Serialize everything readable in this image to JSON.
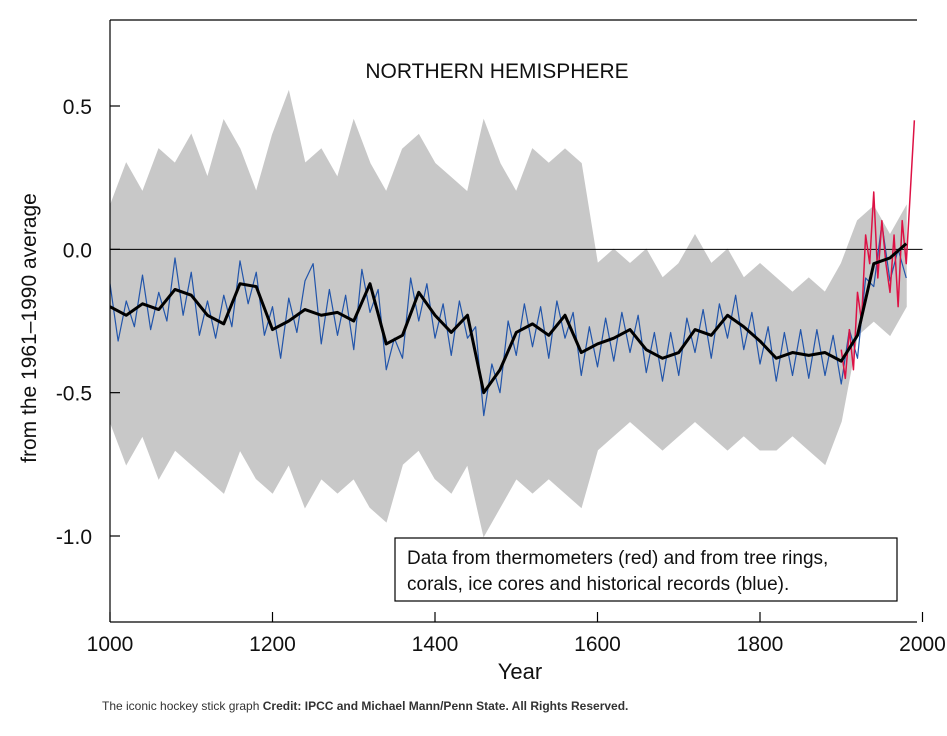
{
  "chart_data": {
    "type": "line",
    "title": "NORTHERN HEMISPHERE",
    "ylabel": "from the 1961–1990 average",
    "xlabel": "Year",
    "annotation": [
      "Data from thermometers (red) and from tree rings,",
      "corals, ice cores and historical records (blue)."
    ],
    "xlim": [
      1000,
      2000
    ],
    "xticks": [
      1000,
      1200,
      1400,
      1600,
      1800,
      2000
    ],
    "ylim": [
      -1.3,
      0.8
    ],
    "yticks": [
      {
        "value": -1,
        "label": "-1.0"
      },
      -0.5,
      {
        "value": 0,
        "label": "0.0"
      },
      0.5
    ],
    "reference_line": 0,
    "band": {
      "color": "#c8c8c8",
      "x": [
        1000,
        1020,
        1040,
        1060,
        1080,
        1100,
        1120,
        1140,
        1160,
        1180,
        1200,
        1220,
        1240,
        1260,
        1280,
        1300,
        1320,
        1340,
        1360,
        1380,
        1400,
        1420,
        1440,
        1460,
        1480,
        1500,
        1520,
        1540,
        1560,
        1580,
        1600,
        1620,
        1640,
        1660,
        1680,
        1700,
        1720,
        1740,
        1760,
        1780,
        1800,
        1820,
        1840,
        1860,
        1880,
        1900,
        1920,
        1940,
        1960,
        1980
      ],
      "upper": [
        0.15,
        0.3,
        0.2,
        0.35,
        0.3,
        0.4,
        0.25,
        0.45,
        0.35,
        0.2,
        0.4,
        0.55,
        0.3,
        0.35,
        0.25,
        0.45,
        0.3,
        0.2,
        0.35,
        0.4,
        0.3,
        0.25,
        0.2,
        0.45,
        0.3,
        0.2,
        0.35,
        0.3,
        0.35,
        0.3,
        -0.05,
        0.0,
        -0.05,
        0.0,
        -0.1,
        -0.05,
        0.05,
        -0.05,
        0.0,
        -0.1,
        -0.05,
        -0.1,
        -0.15,
        -0.1,
        -0.15,
        -0.05,
        0.1,
        0.15,
        0.05,
        0.15
      ],
      "lower": [
        -0.6,
        -0.75,
        -0.65,
        -0.8,
        -0.7,
        -0.75,
        -0.8,
        -0.85,
        -0.7,
        -0.8,
        -0.85,
        -0.75,
        -0.9,
        -0.8,
        -0.85,
        -0.8,
        -0.9,
        -0.95,
        -0.75,
        -0.7,
        -0.8,
        -0.85,
        -0.75,
        -1.0,
        -0.9,
        -0.8,
        -0.85,
        -0.8,
        -0.85,
        -0.9,
        -0.7,
        -0.65,
        -0.6,
        -0.65,
        -0.7,
        -0.65,
        -0.6,
        -0.65,
        -0.7,
        -0.65,
        -0.7,
        -0.7,
        -0.65,
        -0.7,
        -0.75,
        -0.6,
        -0.3,
        -0.25,
        -0.3,
        -0.2
      ]
    },
    "series": [
      {
        "color": "#2255aa",
        "width": 1.2,
        "x": [
          1000,
          1010,
          1020,
          1030,
          1040,
          1050,
          1060,
          1070,
          1080,
          1090,
          1100,
          1110,
          1120,
          1130,
          1140,
          1150,
          1160,
          1170,
          1180,
          1190,
          1200,
          1210,
          1220,
          1230,
          1240,
          1250,
          1260,
          1270,
          1280,
          1290,
          1300,
          1310,
          1320,
          1330,
          1340,
          1350,
          1360,
          1370,
          1380,
          1390,
          1400,
          1410,
          1420,
          1430,
          1440,
          1450,
          1460,
          1470,
          1480,
          1490,
          1500,
          1510,
          1520,
          1530,
          1540,
          1550,
          1560,
          1570,
          1580,
          1590,
          1600,
          1610,
          1620,
          1630,
          1640,
          1650,
          1660,
          1670,
          1680,
          1690,
          1700,
          1710,
          1720,
          1730,
          1740,
          1750,
          1760,
          1770,
          1780,
          1790,
          1800,
          1810,
          1820,
          1830,
          1840,
          1850,
          1860,
          1870,
          1880,
          1890,
          1900,
          1910,
          1920,
          1930,
          1940,
          1950,
          1960,
          1970,
          1980
        ],
        "values": [
          -0.12,
          -0.32,
          -0.18,
          -0.27,
          -0.09,
          -0.28,
          -0.15,
          -0.25,
          -0.03,
          -0.23,
          -0.08,
          -0.3,
          -0.18,
          -0.31,
          -0.16,
          -0.27,
          -0.04,
          -0.19,
          -0.08,
          -0.3,
          -0.2,
          -0.38,
          -0.17,
          -0.29,
          -0.11,
          -0.05,
          -0.33,
          -0.14,
          -0.3,
          -0.16,
          -0.35,
          -0.07,
          -0.22,
          -0.14,
          -0.42,
          -0.31,
          -0.38,
          -0.1,
          -0.25,
          -0.12,
          -0.31,
          -0.19,
          -0.37,
          -0.18,
          -0.31,
          -0.27,
          -0.58,
          -0.4,
          -0.5,
          -0.25,
          -0.37,
          -0.19,
          -0.34,
          -0.2,
          -0.38,
          -0.18,
          -0.31,
          -0.22,
          -0.44,
          -0.27,
          -0.41,
          -0.24,
          -0.39,
          -0.22,
          -0.36,
          -0.23,
          -0.43,
          -0.29,
          -0.46,
          -0.29,
          -0.44,
          -0.24,
          -0.36,
          -0.21,
          -0.38,
          -0.19,
          -0.31,
          -0.16,
          -0.35,
          -0.22,
          -0.4,
          -0.27,
          -0.46,
          -0.29,
          -0.44,
          -0.28,
          -0.45,
          -0.28,
          -0.44,
          -0.3,
          -0.47,
          -0.28,
          -0.38,
          -0.1,
          -0.13,
          0.09,
          -0.11,
          0.0,
          -0.1
        ]
      },
      {
        "color": "#dd1144",
        "width": 1.5,
        "x": [
          1900,
          1905,
          1910,
          1915,
          1920,
          1925,
          1930,
          1935,
          1940,
          1945,
          1950,
          1955,
          1960,
          1965,
          1970,
          1975,
          1980,
          1985,
          1990
        ],
        "values": [
          -0.35,
          -0.45,
          -0.28,
          -0.42,
          -0.15,
          -0.25,
          0.05,
          -0.05,
          0.2,
          -0.1,
          0.1,
          -0.05,
          -0.15,
          0.05,
          -0.2,
          0.1,
          -0.05,
          0.2,
          0.45
        ]
      },
      {
        "color": "#000000",
        "width": 3,
        "x": [
          1000,
          1020,
          1040,
          1060,
          1080,
          1100,
          1120,
          1140,
          1160,
          1180,
          1200,
          1220,
          1240,
          1260,
          1280,
          1300,
          1320,
          1340,
          1360,
          1380,
          1400,
          1420,
          1440,
          1460,
          1480,
          1500,
          1520,
          1540,
          1560,
          1580,
          1600,
          1620,
          1640,
          1660,
          1680,
          1700,
          1720,
          1740,
          1760,
          1780,
          1800,
          1820,
          1840,
          1860,
          1880,
          1900,
          1920,
          1940,
          1960,
          1980
        ],
        "values": [
          -0.2,
          -0.23,
          -0.19,
          -0.21,
          -0.14,
          -0.16,
          -0.23,
          -0.26,
          -0.12,
          -0.13,
          -0.28,
          -0.25,
          -0.21,
          -0.23,
          -0.22,
          -0.25,
          -0.12,
          -0.33,
          -0.3,
          -0.15,
          -0.23,
          -0.29,
          -0.23,
          -0.5,
          -0.42,
          -0.29,
          -0.26,
          -0.3,
          -0.23,
          -0.36,
          -0.33,
          -0.31,
          -0.28,
          -0.35,
          -0.38,
          -0.36,
          -0.28,
          -0.3,
          -0.23,
          -0.27,
          -0.32,
          -0.38,
          -0.36,
          -0.37,
          -0.36,
          -0.39,
          -0.3,
          -0.05,
          -0.03,
          0.02
        ]
      }
    ]
  },
  "caption": {
    "text": "The iconic hockey stick graph",
    "credit": "Credit: IPCC and Michael Mann/Penn State. All Rights Reserved."
  }
}
